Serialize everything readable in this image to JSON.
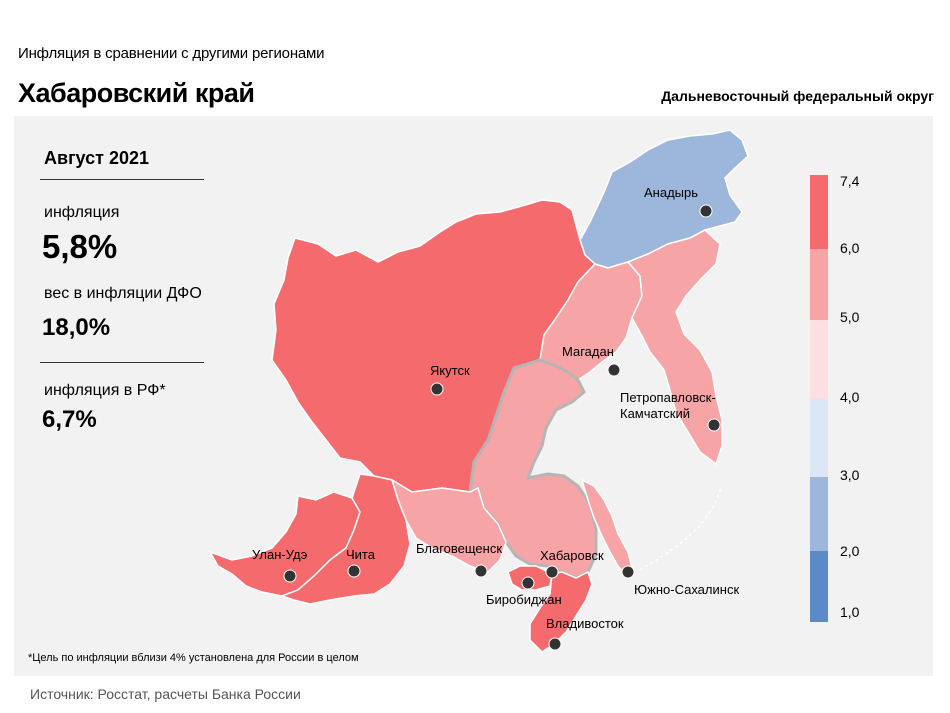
{
  "header": {
    "subtitle": "Инфляция  в сравнении  с другими  регионами",
    "title": "Хабаровский край",
    "district": "Дальневосточный федеральный округ"
  },
  "stats": {
    "period": "Август 2021",
    "inflation_label": "инфляция",
    "inflation_value": "5,8%",
    "weight_label": "вес в инфляции  ДФО",
    "weight_value": "18,0%",
    "rf_label": "инфляция  в РФ*",
    "rf_value": "6,7%"
  },
  "legend": {
    "ticks": [
      "7,4",
      "6,0",
      "5,0",
      "4,0",
      "3,0",
      "2,0",
      "1,0"
    ],
    "colors": [
      "#f56a6c",
      "#f7a4a6",
      "#fbdfe2",
      "#dce6f5",
      "#9db7dc",
      "#5b8ac7"
    ]
  },
  "cities": [
    {
      "name": "Анадырь"
    },
    {
      "name": "Магадан"
    },
    {
      "name": "Якутск"
    },
    {
      "name": "Петропавловск-"
    },
    {
      "name": "Камчатский"
    },
    {
      "name": "Улан-Удэ"
    },
    {
      "name": "Чита"
    },
    {
      "name": "Благовещенск"
    },
    {
      "name": "Хабаровск"
    },
    {
      "name": "Биробиджан"
    },
    {
      "name": "Южно-Сахалинск"
    },
    {
      "name": "Владивосток"
    }
  ],
  "region_colors": {
    "high": "#f56a6c",
    "medium": "#f7a4a6",
    "low": "#9db7dc",
    "border": "#ffffff",
    "selected_outline": "#b5b5b5"
  },
  "footer": {
    "footnote": "*Цель по инфляции вблизи 4% установлена для России в целом",
    "source": "Источник: Росстат, расчеты Банка России"
  }
}
